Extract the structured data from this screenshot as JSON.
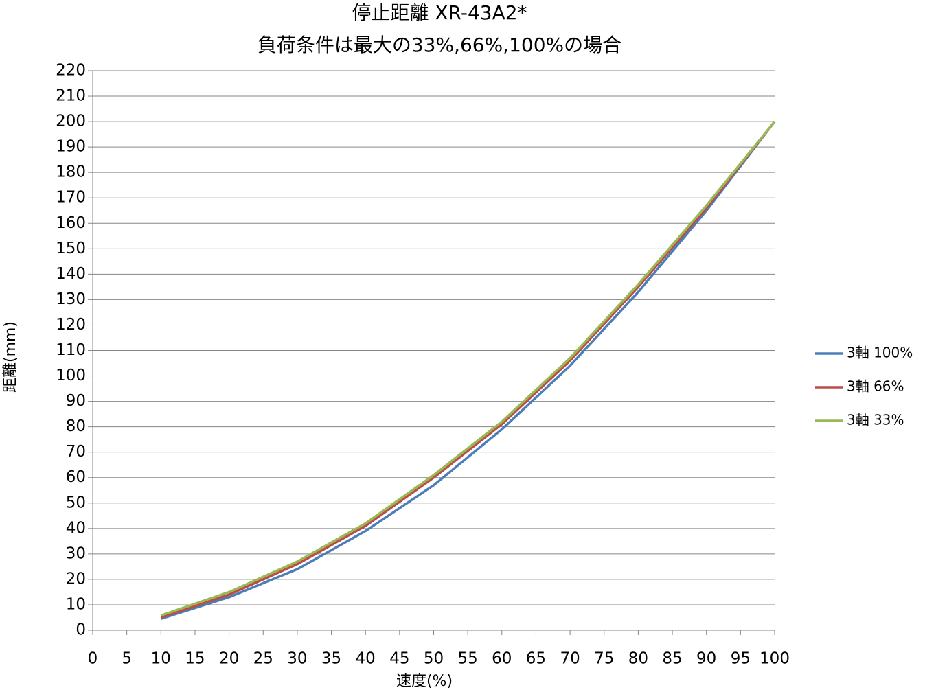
{
  "chart_data": {
    "type": "line",
    "title": "停止距離 XR-43A2*",
    "subtitle": "負荷条件は最大の33%,66%,100%の場合",
    "x_label": "速度(%)",
    "y_label": "距離(mm)",
    "x": [
      10,
      20,
      30,
      40,
      50,
      60,
      70,
      80,
      90,
      100
    ],
    "series": [
      {
        "name": "3軸 100%",
        "color": "#4a7ebb",
        "values": [
          4.5,
          13,
          24,
          39,
          57,
          79,
          104,
          133,
          165,
          200
        ]
      },
      {
        "name": "3軸 66%",
        "color": "#be4b48",
        "values": [
          5,
          14,
          26,
          41,
          60,
          81,
          106,
          135,
          166,
          200
        ]
      },
      {
        "name": "3軸 33%",
        "color": "#98b954",
        "values": [
          5.8,
          15,
          27,
          42,
          61,
          82,
          107,
          136,
          167,
          200
        ]
      }
    ],
    "xlim": [
      0,
      100
    ],
    "xticks": [
      0,
      5,
      10,
      15,
      20,
      25,
      30,
      35,
      40,
      45,
      50,
      55,
      60,
      65,
      70,
      75,
      80,
      85,
      90,
      95,
      100
    ],
    "ylim": [
      0,
      220
    ],
    "yticks": [
      0,
      10,
      20,
      30,
      40,
      50,
      60,
      70,
      80,
      90,
      100,
      110,
      120,
      130,
      140,
      150,
      160,
      170,
      180,
      190,
      200,
      210,
      220
    ],
    "grid": true,
    "legend": "right"
  }
}
